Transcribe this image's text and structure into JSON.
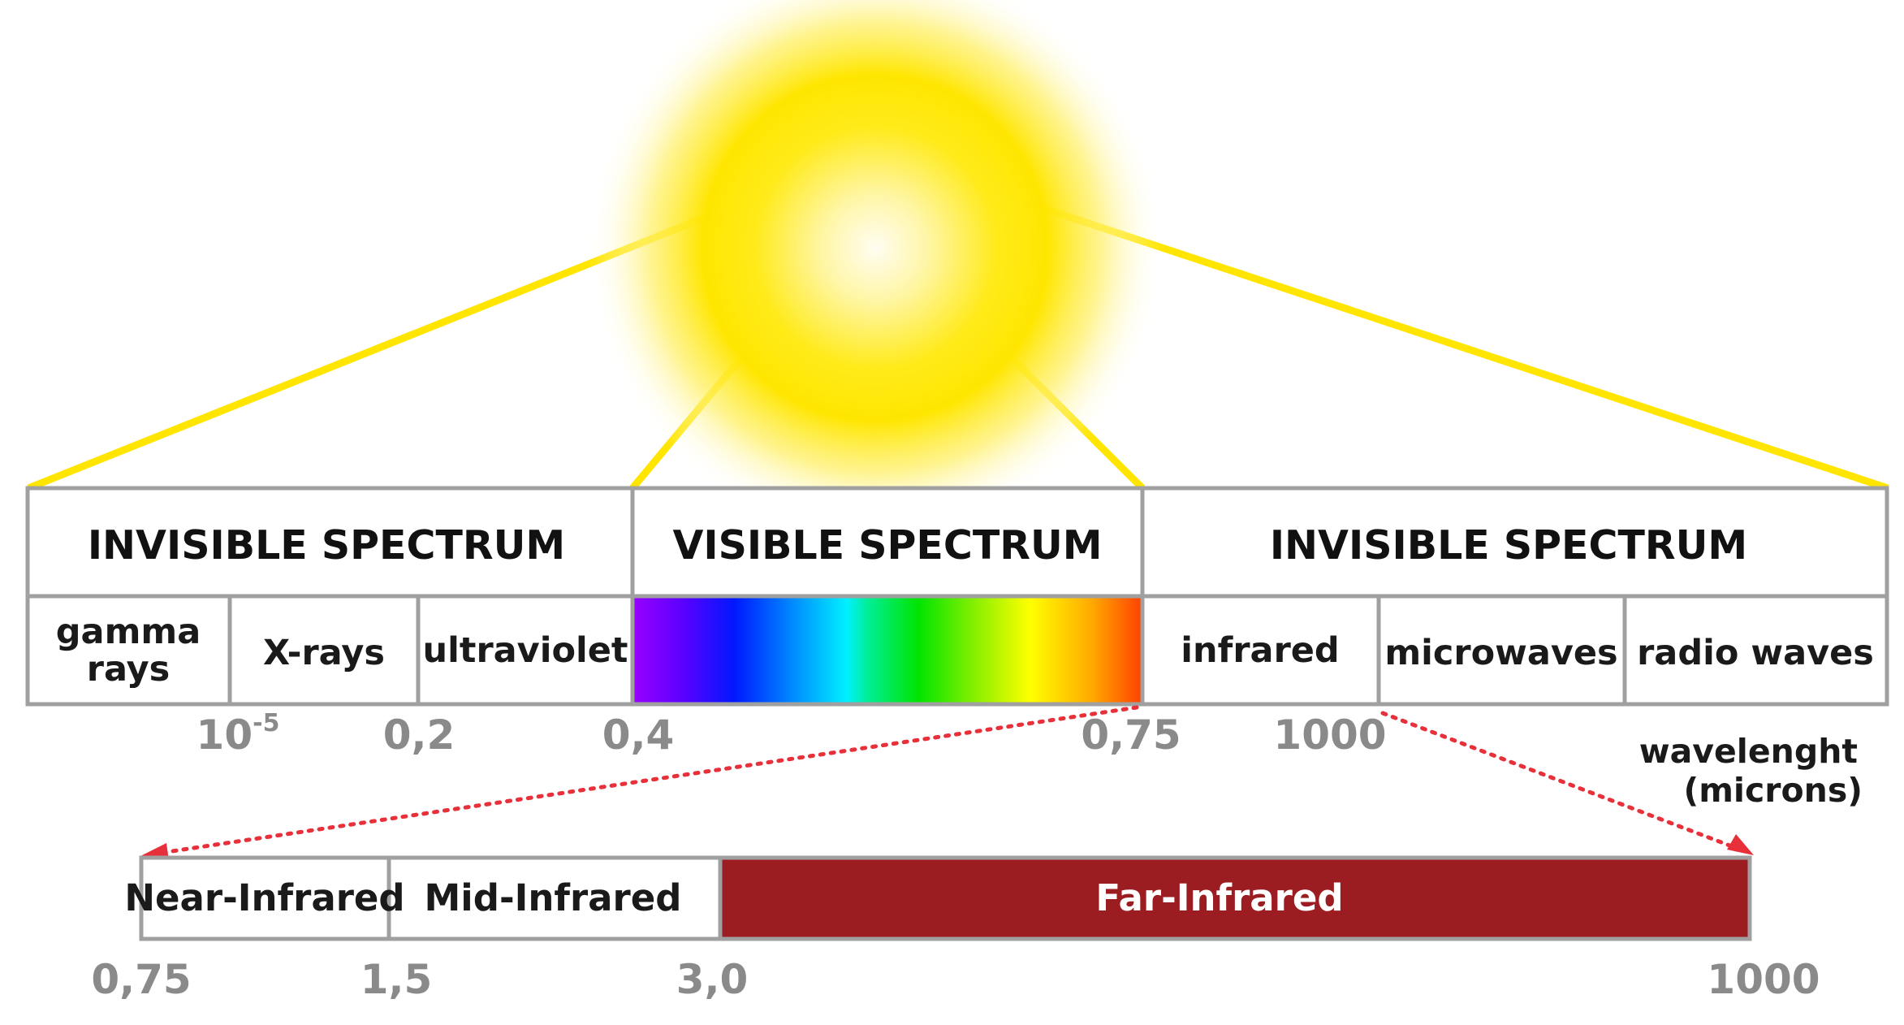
{
  "colors": {
    "sun_core": "#fffdf0",
    "sun_glow": "#ffe600",
    "ray_lines": "#ffe500",
    "border": "#a0a0a0",
    "arrow": "#e8303a",
    "far_infrared": "#9b1c21",
    "tick_text": "#8a8a8a",
    "spectrum_gradient": [
      "#9a00ff",
      "#0022ff",
      "#00f0ff",
      "#00e400",
      "#ffff00",
      "#ff4500"
    ]
  },
  "spectrum": {
    "headers": {
      "invisible_left": "INVISIBLE SPECTRUM",
      "visible": "VISIBLE SPECTRUM",
      "invisible_right": "INVISIBLE SPECTRUM"
    },
    "bands": {
      "gamma_line1": "gamma",
      "gamma_line2": "rays",
      "xrays": "X-rays",
      "ultraviolet": "ultraviolet",
      "infrared": "infrared",
      "microwaves": "microwaves",
      "radio": "radio waves"
    },
    "ticks": {
      "t1_base": "10",
      "t1_exp": "-5",
      "t2": "0,2",
      "t3": "0,4",
      "t4": "0,75",
      "t5": "1000"
    },
    "unit_line1": "wavelenght",
    "unit_line2": "(microns)"
  },
  "infrared_detail": {
    "near": "Near-Infrared",
    "mid": "Mid-Infrared",
    "far": "Far-Infrared",
    "ticks": [
      "0,75",
      "1,5",
      "3,0",
      "1000"
    ]
  }
}
